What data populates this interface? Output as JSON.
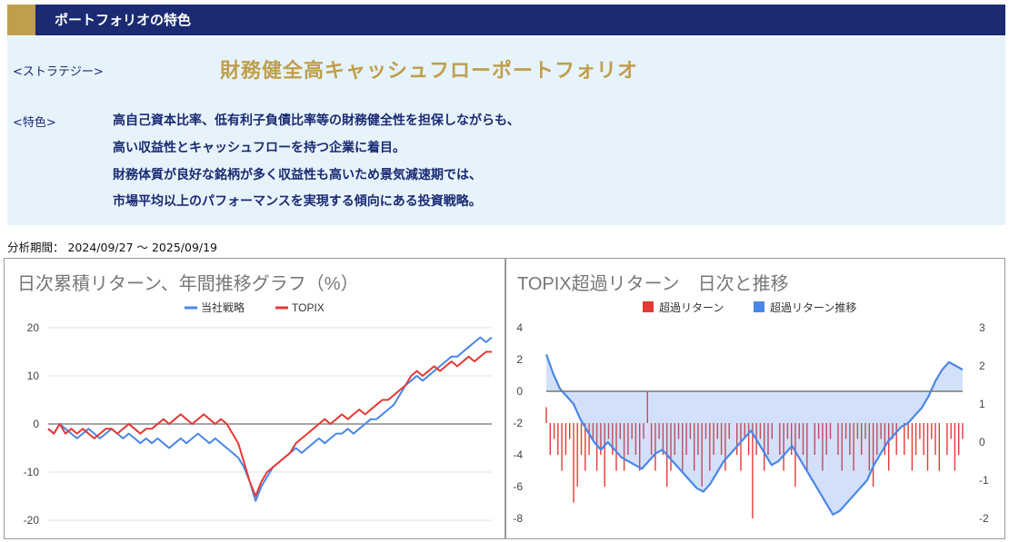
{
  "header": {
    "title": "ポートフォリオの特色"
  },
  "strategy": {
    "label": "<ストラテジー>",
    "name": "財務健全高キャッシュフローポートフォリオ"
  },
  "feature": {
    "label": "<特色>",
    "lines": [
      "高自己資本比率、低有利子負債比率等の財務健全性を担保しながらも、",
      "高い収益性とキャッシュフローを持つ企業に着目。",
      "財務体質が良好な銘柄が多く収益性も高いため景気減速期では、",
      "市場平均以上のパフォーマンスを実現する傾向にある投資戦略。"
    ]
  },
  "period": {
    "text": "分析期間： 2024/09/27 〜 2025/09/19"
  },
  "colors": {
    "navy": "#1b2a73",
    "gold": "#bf9e4d",
    "blue": "#4a86e8",
    "red": "#e53935",
    "panel": "#e6f3fb"
  },
  "chart_data": [
    {
      "type": "line",
      "title": "日次累積リターン、年間推移グラフ（%）",
      "legend": "top-center",
      "ylim": [
        -20,
        20
      ],
      "yticks": [
        20,
        10,
        0,
        -10,
        -20
      ],
      "grid": true,
      "x_range": [
        "2024/09/27",
        "2025/09/19"
      ],
      "series": [
        {
          "name": "当社戦略",
          "color": "#4a86e8",
          "values": [
            -1,
            -2,
            0,
            -1,
            -2,
            -3,
            -2,
            -1,
            -2,
            -3,
            -2,
            -1,
            -2,
            -3,
            -2,
            -3,
            -4,
            -3,
            -4,
            -3,
            -4,
            -5,
            -4,
            -3,
            -4,
            -3,
            -2,
            -3,
            -4,
            -3,
            -4,
            -5,
            -6,
            -7,
            -9,
            -12,
            -16,
            -13,
            -11,
            -9,
            -8,
            -7,
            -6,
            -5,
            -6,
            -5,
            -4,
            -3,
            -4,
            -3,
            -2,
            -2,
            -1,
            -2,
            -1,
            0,
            1,
            1,
            2,
            3,
            4,
            6,
            8,
            9,
            10,
            9,
            10,
            11,
            12,
            13,
            14,
            14,
            15,
            16,
            17,
            18,
            17,
            18
          ]
        },
        {
          "name": "TOPIX",
          "color": "#e53935",
          "values": [
            -1,
            -2,
            0,
            -2,
            -1,
            -2,
            -1,
            -2,
            -3,
            -2,
            -1,
            -1,
            -2,
            -1,
            0,
            -1,
            -2,
            -1,
            -1,
            0,
            1,
            0,
            1,
            2,
            1,
            0,
            1,
            2,
            1,
            0,
            1,
            0,
            -2,
            -4,
            -8,
            -12,
            -15,
            -12,
            -10,
            -9,
            -8,
            -7,
            -6,
            -4,
            -3,
            -2,
            -1,
            0,
            1,
            0,
            1,
            2,
            1,
            2,
            3,
            2,
            3,
            4,
            5,
            5,
            6,
            7,
            8,
            10,
            11,
            10,
            11,
            12,
            11,
            12,
            13,
            12,
            13,
            14,
            13,
            14,
            15,
            15
          ]
        }
      ]
    },
    {
      "type": "bar",
      "title": "TOPIX超過リターン　日次と推移",
      "legend": "top-center",
      "left_axis": {
        "ylim": [
          -8,
          4
        ],
        "ticks": [
          4,
          2,
          0,
          -2,
          -4,
          -6,
          -8
        ]
      },
      "right_axis": {
        "ylim": [
          -2,
          3
        ],
        "ticks": [
          3,
          2,
          1,
          0,
          -1,
          -2
        ]
      },
      "series": [
        {
          "name": "超過リターン",
          "color": "#e53935",
          "axis": "left",
          "values": [
            -1,
            -4,
            -3,
            -4,
            -5,
            -4,
            -3,
            -7,
            -6,
            -4,
            -5,
            -4,
            -3,
            -5,
            -4,
            -6,
            -3,
            -4,
            -5,
            -3,
            -5,
            -4,
            -3,
            -4,
            -5,
            -3,
            0,
            -4,
            -5,
            -3,
            -4,
            -6,
            -5,
            -4,
            -3,
            -5,
            -4,
            -3,
            -5,
            -4,
            -6,
            -3,
            -5,
            -4,
            -3,
            -4,
            -5,
            -3,
            -2,
            -4,
            -5,
            -3,
            -4,
            -8,
            -4,
            -3,
            -5,
            -4,
            -3,
            -2,
            -4,
            -5,
            -3,
            -4,
            -6,
            -3,
            -4,
            -5,
            -2,
            -4,
            -3,
            -5,
            -4,
            -3,
            -2,
            -4,
            -5,
            -3,
            -4,
            -5,
            -3,
            -4,
            -3,
            -5,
            -6,
            -4,
            -3,
            -4,
            -5,
            -3,
            -4,
            -2,
            -4,
            -3,
            -5,
            -4,
            -3,
            -4,
            -5,
            -3,
            -4,
            -5,
            -2,
            -4,
            -3,
            -5,
            -4,
            -3
          ]
        },
        {
          "name": "超過リターン推移",
          "color": "#4a86e8",
          "axis": "right",
          "values": [
            2.3,
            1.8,
            1.4,
            1.2,
            1.0,
            0.6,
            0.3,
            0.0,
            -0.2,
            0.0,
            -0.2,
            -0.4,
            -0.5,
            -0.6,
            -0.7,
            -0.5,
            -0.3,
            -0.2,
            -0.4,
            -0.6,
            -0.8,
            -1.0,
            -1.2,
            -1.3,
            -1.1,
            -0.8,
            -0.5,
            -0.3,
            -0.1,
            0.1,
            0.3,
            0.0,
            -0.3,
            -0.6,
            -0.5,
            -0.3,
            -0.1,
            -0.4,
            -0.7,
            -1.0,
            -1.3,
            -1.6,
            -1.9,
            -1.8,
            -1.6,
            -1.4,
            -1.2,
            -1.0,
            -0.6,
            -0.3,
            0.0,
            0.2,
            0.4,
            0.5,
            0.7,
            0.9,
            1.2,
            1.6,
            1.9,
            2.1,
            2.0,
            1.9
          ]
        }
      ]
    }
  ]
}
